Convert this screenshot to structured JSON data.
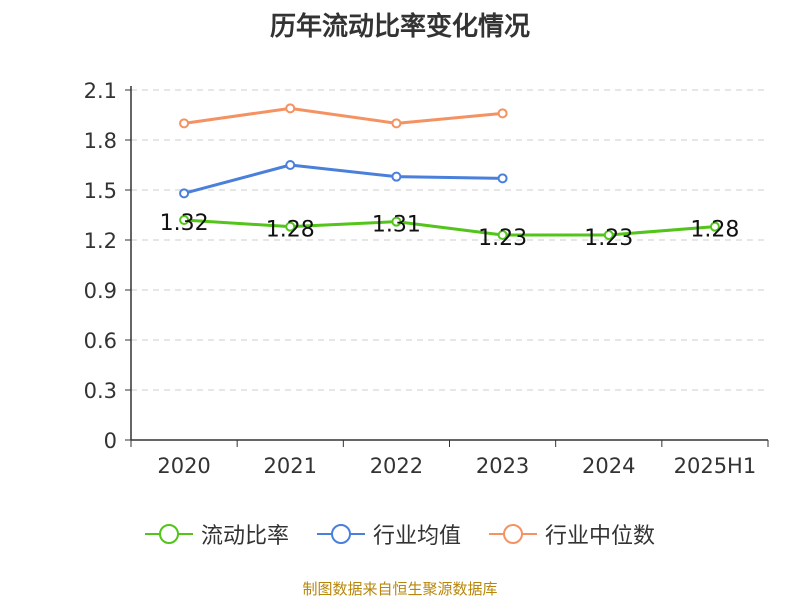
{
  "title": "历年流动比率变化情况",
  "footer": "制图数据来自恒生聚源数据库",
  "legend": [
    {
      "label": "流动比率",
      "color": "#52c41a"
    },
    {
      "label": "行业均值",
      "color": "#4a7fdb"
    },
    {
      "label": "行业中位数",
      "color": "#f59262"
    }
  ],
  "chart_data": {
    "type": "line",
    "categories": [
      "2020",
      "2021",
      "2022",
      "2023",
      "2024",
      "2025H1"
    ],
    "ylim": [
      0,
      2.1
    ],
    "yticks": [
      "0",
      "0.3",
      "0.6",
      "0.9",
      "1.2",
      "1.5",
      "1.8",
      "2.1"
    ],
    "grid": true,
    "legend_position": "bottom",
    "series": [
      {
        "name": "流动比率",
        "color": "#52c41a",
        "values": [
          1.32,
          1.28,
          1.31,
          1.23,
          1.23,
          1.28
        ],
        "labels": [
          "1.32",
          "1.28",
          "1.31",
          "1.23",
          "1.23",
          "1.28"
        ]
      },
      {
        "name": "行业均值",
        "color": "#4a7fdb",
        "values": [
          1.48,
          1.65,
          1.58,
          1.57,
          null,
          null
        ]
      },
      {
        "name": "行业中位数",
        "color": "#f59262",
        "values": [
          1.9,
          1.99,
          1.9,
          1.96,
          null,
          null
        ]
      }
    ]
  }
}
